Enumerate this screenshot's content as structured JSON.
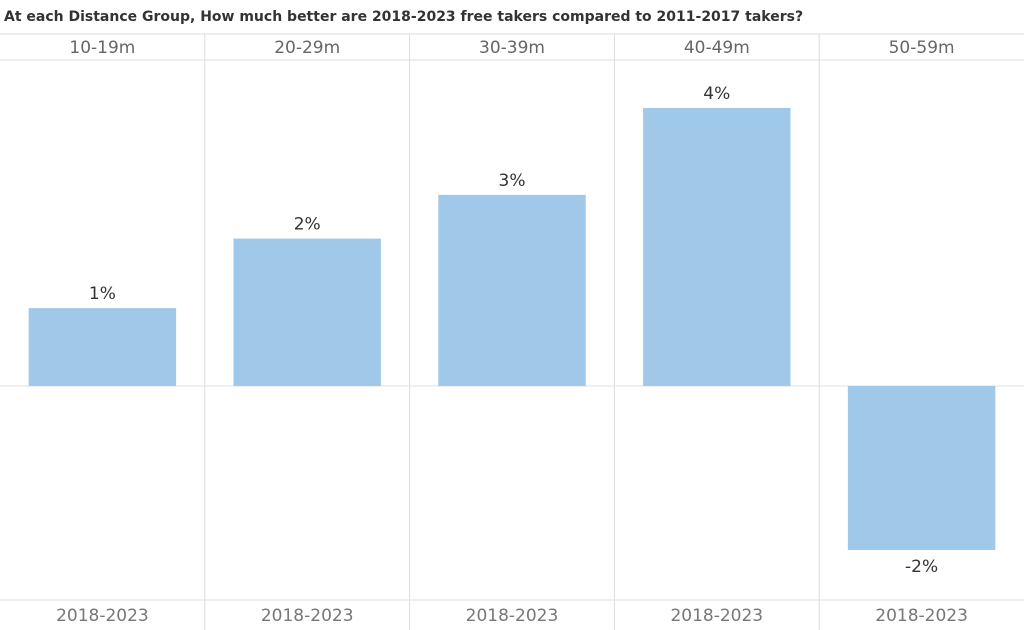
{
  "chart_data": {
    "type": "bar",
    "title": "At each Distance Group, How much better are 2018-2023 free takers compared to 2011-2017 takers?",
    "categories": [
      "10-19m",
      "20-29m",
      "30-39m",
      "40-49m",
      "50-59m"
    ],
    "series": [
      {
        "name": "2018-2023",
        "color": "#a0c8e8",
        "values": [
          1.12,
          2.12,
          2.75,
          4.0,
          -2.36
        ],
        "value_labels": [
          "1%",
          "2%",
          "3%",
          "4%",
          "-2%"
        ]
      }
    ],
    "ylim": [
      -3.08,
      4.69
    ]
  }
}
